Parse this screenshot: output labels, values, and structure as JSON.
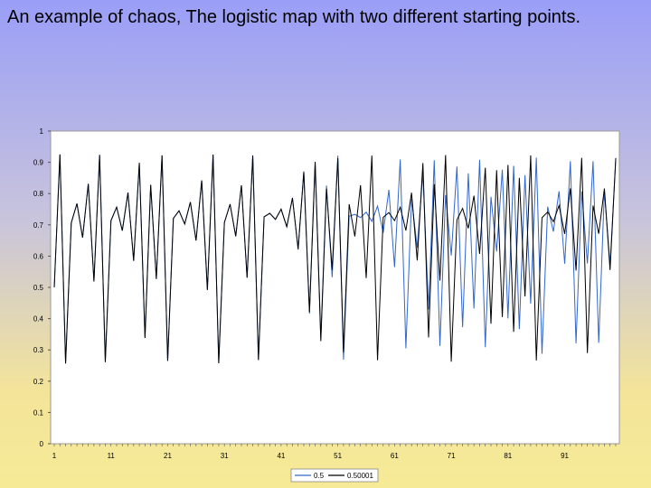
{
  "slide": {
    "title": "An example of chaos, The logistic map with two different starting points."
  },
  "chart_data": {
    "type": "line",
    "title": "",
    "xlabel": "",
    "ylabel": "",
    "r": 3.7,
    "n_points": 100,
    "xlim": [
      1,
      100
    ],
    "ylim": [
      0,
      1
    ],
    "x_ticks": [
      "1",
      "11",
      "21",
      "31",
      "41",
      "51",
      "61",
      "71",
      "81",
      "91"
    ],
    "y_ticks": [
      "0",
      "0.1",
      "0.2",
      "0.3",
      "0.4",
      "0.5",
      "0.6",
      "0.7",
      "0.8",
      "0.9",
      "1"
    ],
    "grid": false,
    "legend_position": "bottom",
    "series": [
      {
        "name": "0.5",
        "start": 0.5,
        "color": "#3366cc"
      },
      {
        "name": "0.50001",
        "start": 0.50001,
        "color": "#000000"
      }
    ]
  }
}
